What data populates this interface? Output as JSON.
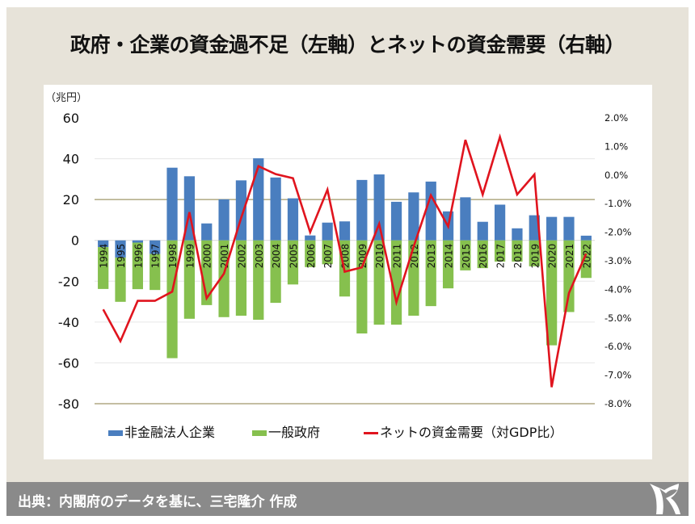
{
  "page": {
    "title": "政府・企業の資金過不足（左軸）とネットの資金需要（右軸）",
    "footer": "出典：内閣府のデータを基に、三宅隆介 作成",
    "logo_icon": "monogram-logo-icon"
  },
  "colors": {
    "corporate": "#4a7ebf",
    "government": "#86c04e",
    "net_demand": "#e0141e",
    "panel_bg": "#e7e3d9",
    "footer_bg": "#8a8a8a",
    "olive_gridline": "#a0976a",
    "gridline": "#e6e6e6"
  },
  "chart_data": {
    "type": "bar",
    "subtype": "stacked bar + line (secondary axis)",
    "title": "政府・企業の資金過不足（左軸）とネットの資金需要（右軸）",
    "ylabel": "（兆円）",
    "ylim": [
      -80,
      60
    ],
    "yticks": [
      60,
      40,
      20,
      0,
      -20,
      -40,
      -60,
      -80
    ],
    "y2lim": [
      -8.0,
      2.0
    ],
    "y2ticks": [
      "2.0%",
      "1.0%",
      "0.0%",
      "-1.0%",
      "-2.0%",
      "-3.0%",
      "-4.0%",
      "-5.0%",
      "-6.0%",
      "-7.0%",
      "-8.0%"
    ],
    "grid": true,
    "legend_position": "bottom",
    "categories": [
      "1994",
      "1995",
      "1996",
      "1997",
      "1998",
      "1999",
      "2000",
      "2001",
      "2002",
      "2003",
      "2004",
      "2005",
      "2006",
      "2007",
      "2008",
      "2009",
      "2010",
      "2011",
      "2012",
      "2013",
      "2014",
      "2015",
      "2016",
      "2017",
      "2018",
      "2019",
      "2020",
      "2021",
      "2022"
    ],
    "series": [
      {
        "name": "非金融法人企業",
        "type": "bar",
        "axis": "left",
        "values": [
          -3.3,
          -8.4,
          -1.1,
          -6.7,
          35.6,
          31.4,
          8.3,
          20.1,
          29.4,
          40.2,
          30.8,
          20.6,
          2.4,
          8.7,
          9.3,
          29.6,
          32.3,
          18.9,
          23.5,
          28.8,
          14.2,
          21.1,
          9.1,
          17.5,
          5.9,
          12.3,
          11.5,
          11.5,
          2.3
        ]
      },
      {
        "name": "一般政府",
        "type": "bar",
        "axis": "left",
        "values": [
          -20.5,
          -21.7,
          -22.8,
          -17.6,
          -57.7,
          -38.4,
          -31.7,
          -37.6,
          -36.9,
          -38.9,
          -30.6,
          -21.6,
          -13.1,
          -11.7,
          -27.5,
          -45.6,
          -41.3,
          -41.3,
          -36.9,
          -32.2,
          -23.5,
          -14.7,
          -13.6,
          -10.4,
          -10.4,
          -12.7,
          -51.4,
          -35.1,
          -18.4
        ]
      },
      {
        "name": "ネットの資金需要（対GDP比）",
        "type": "line",
        "axis": "right",
        "unit": "%",
        "values": [
          -4.7,
          -5.81,
          -4.4,
          -4.4,
          -4.08,
          -1.3,
          -4.31,
          -3.45,
          -1.5,
          0.31,
          0.03,
          -0.11,
          -2.0,
          -0.51,
          -3.38,
          -3.23,
          -1.71,
          -4.45,
          -2.5,
          -0.71,
          -1.8,
          1.23,
          -0.68,
          1.33,
          -0.68,
          0.02,
          -7.42,
          -4.13,
          -2.75
        ]
      }
    ]
  }
}
